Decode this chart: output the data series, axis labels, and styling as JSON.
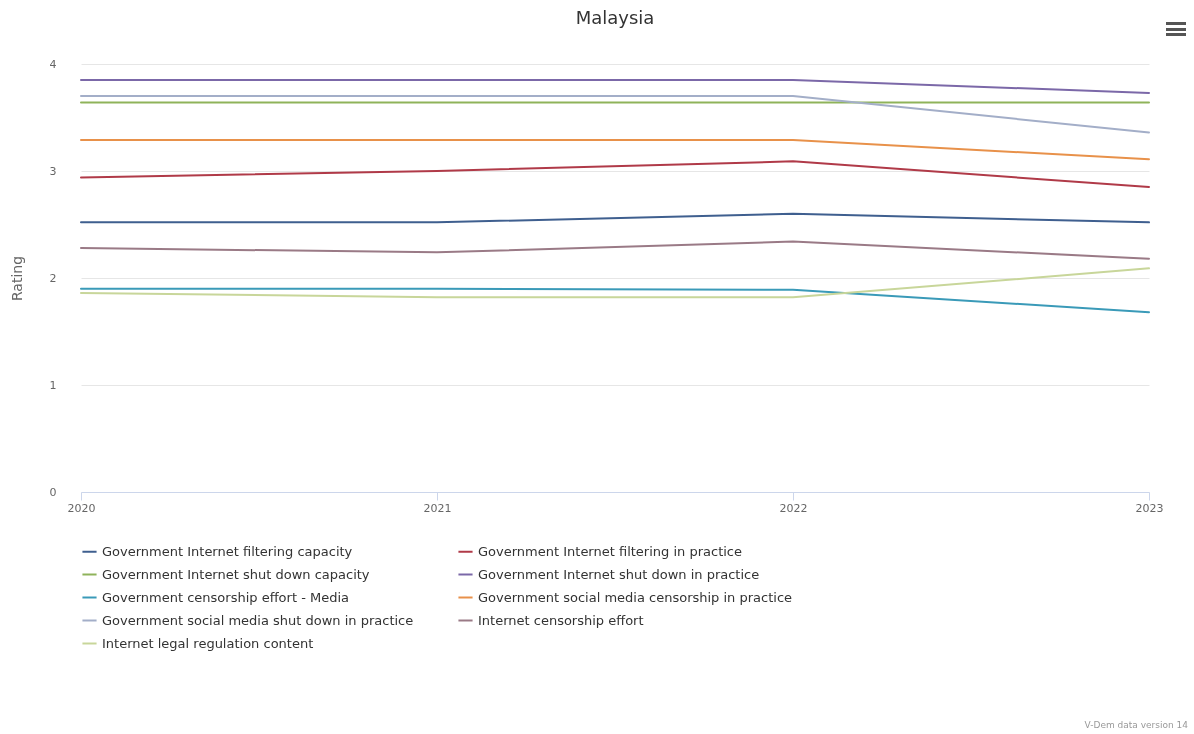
{
  "chart_data": {
    "type": "line",
    "title": "Malaysia",
    "ylabel": "Rating",
    "x": [
      2020,
      2021,
      2022,
      2023
    ],
    "xlim": [
      2020,
      2023
    ],
    "xticks": [
      2020,
      2021,
      2022,
      2023
    ],
    "ylim": [
      0,
      4
    ],
    "yticks": [
      0,
      1,
      2,
      3,
      4
    ],
    "grid": "y",
    "legend": "bottom",
    "line_style": "solid",
    "annotations": [
      "V-Dem data version 14"
    ],
    "series": [
      {
        "name": "Government Internet filtering capacity",
        "color": "#3f5f8f",
        "values": [
          2.52,
          2.52,
          2.6,
          2.52
        ]
      },
      {
        "name": "Government Internet filtering in practice",
        "color": "#b03a48",
        "values": [
          2.94,
          3.0,
          3.09,
          2.85
        ]
      },
      {
        "name": "Government Internet shut down capacity",
        "color": "#8fb35a",
        "values": [
          3.64,
          3.64,
          3.64,
          3.64
        ]
      },
      {
        "name": "Government Internet shut down in practice",
        "color": "#7b68a8",
        "values": [
          3.85,
          3.85,
          3.85,
          3.73
        ]
      },
      {
        "name": "Government censorship effort - Media",
        "color": "#3a9ab8",
        "values": [
          1.9,
          1.9,
          1.89,
          1.68
        ]
      },
      {
        "name": "Government social media censorship in practice",
        "color": "#e8914a",
        "values": [
          3.29,
          3.29,
          3.29,
          3.11
        ]
      },
      {
        "name": "Government social media shut down in practice",
        "color": "#a3aec8",
        "values": [
          3.7,
          3.7,
          3.7,
          3.36
        ]
      },
      {
        "name": "Internet censorship effort",
        "color": "#9a7a86",
        "values": [
          2.28,
          2.24,
          2.34,
          2.18
        ]
      },
      {
        "name": "Internet legal regulation content",
        "color": "#c8d69a",
        "values": [
          1.86,
          1.82,
          1.82,
          2.09
        ]
      }
    ]
  }
}
